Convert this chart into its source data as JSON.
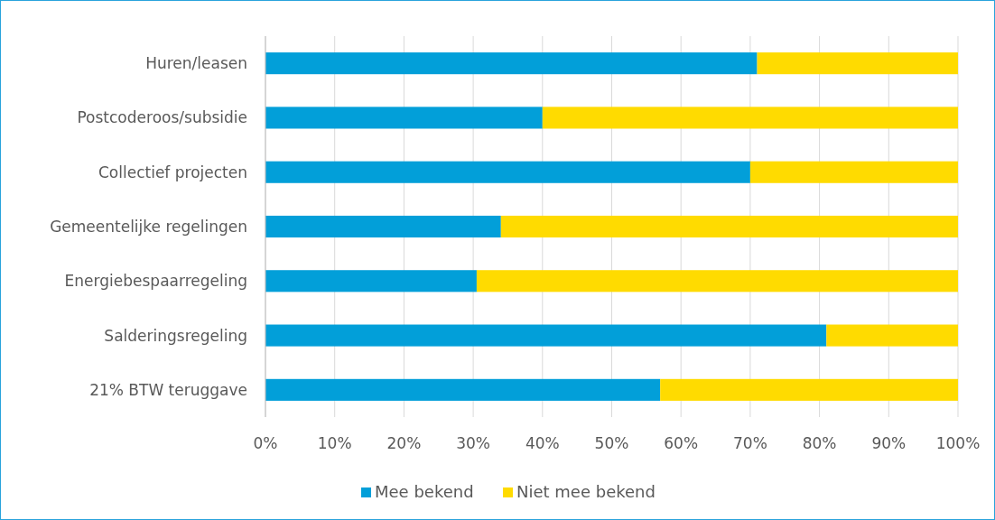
{
  "chart_data": {
    "type": "bar",
    "orientation": "horizontal",
    "stacked": true,
    "categories": [
      "Huren/leasen",
      "Postcoderoos/subsidie",
      "Collectief projecten",
      "Gemeentelijke regelingen",
      "Energiebespaarregeling",
      "Salderingsregeling",
      "21% BTW teruggave"
    ],
    "series": [
      {
        "name": "Mee bekend",
        "color": "#029fd9",
        "values": [
          71,
          40,
          70,
          34,
          30.5,
          81,
          57
        ]
      },
      {
        "name": "Niet mee bekend",
        "color": "#ffdb00",
        "values": [
          29,
          60,
          30,
          66,
          69.5,
          19,
          43
        ]
      }
    ],
    "xlim": [
      0,
      100
    ],
    "xticks": [
      {
        "value": 0,
        "label": "0%"
      },
      {
        "value": 10,
        "label": "10%"
      },
      {
        "value": 20,
        "label": "20%"
      },
      {
        "value": 30,
        "label": "30%"
      },
      {
        "value": 40,
        "label": "40%"
      },
      {
        "value": 50,
        "label": "50%"
      },
      {
        "value": 60,
        "label": "60%"
      },
      {
        "value": 70,
        "label": "70%"
      },
      {
        "value": 80,
        "label": "80%"
      },
      {
        "value": 90,
        "label": "90%"
      },
      {
        "value": 100,
        "label": "100%"
      }
    ],
    "grid": "x",
    "legend": "bottom"
  }
}
